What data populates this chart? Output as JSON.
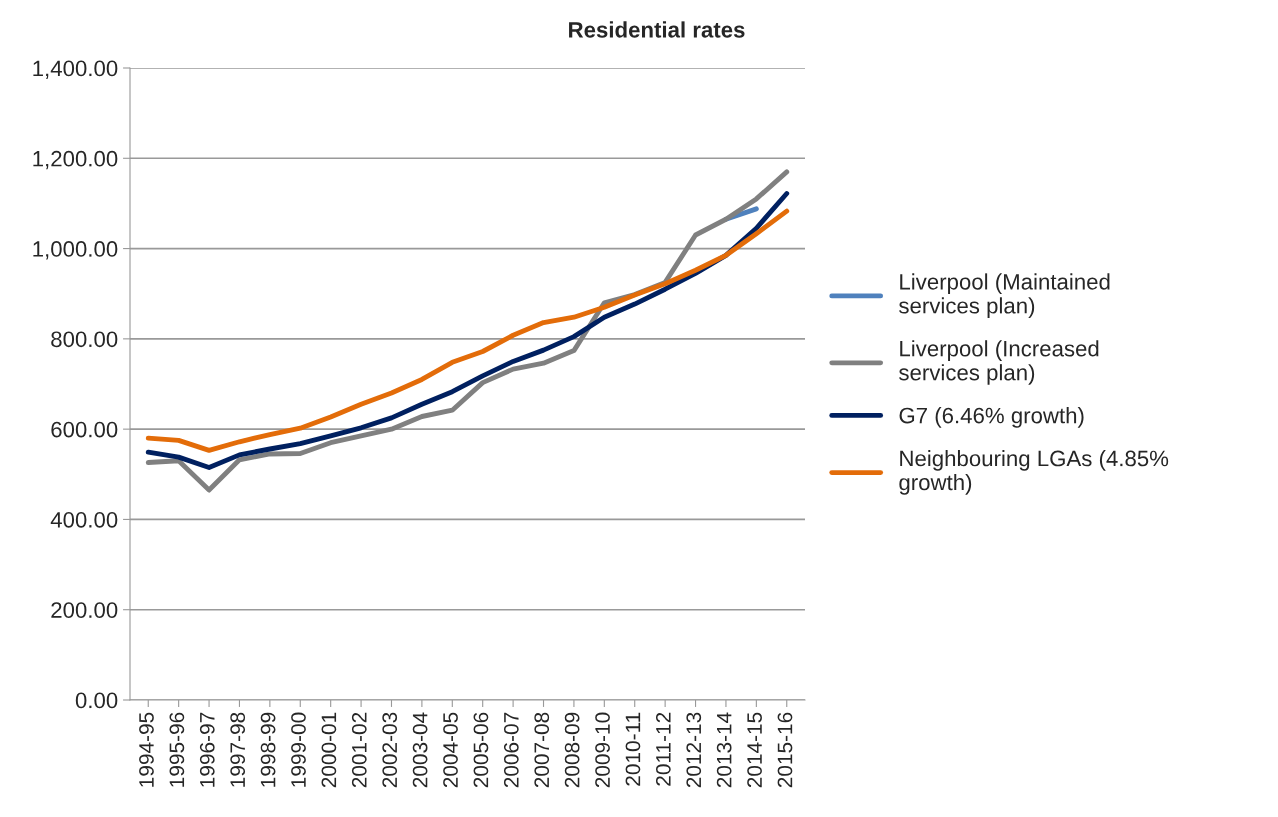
{
  "chart_data": {
    "type": "line",
    "title": "Residential rates",
    "categories": [
      "1994-95",
      "1995-96",
      "1996-97",
      "1997-98",
      "1998-99",
      "1999-00",
      "2000-01",
      "2001-02",
      "2002-03",
      "2003-04",
      "2004-05",
      "2005-06",
      "2006-07",
      "2007-08",
      "2008-09",
      "2009-10",
      "2010-11",
      "2011-12",
      "2012-13",
      "2013-14",
      "2014-15",
      "2015-16"
    ],
    "series": [
      {
        "name": "Liverpool (Maintained services plan)",
        "color": "#4f81bd",
        "values": [
          null,
          null,
          null,
          null,
          null,
          null,
          null,
          null,
          null,
          null,
          null,
          null,
          null,
          null,
          null,
          null,
          null,
          null,
          null,
          1065,
          1088,
          null
        ]
      },
      {
        "name": "Liverpool (Increased services plan)",
        "color": "#808080",
        "values": [
          526,
          530,
          465,
          532,
          545,
          546,
          570,
          585,
          600,
          628,
          642,
          703,
          733,
          746,
          774,
          880,
          898,
          925,
          1030,
          1065,
          1110,
          1170
        ]
      },
      {
        "name": "G7 (6.46% growth)",
        "color": "#002060",
        "values": [
          549,
          538,
          515,
          543,
          556,
          568,
          585,
          603,
          625,
          655,
          683,
          718,
          750,
          775,
          805,
          848,
          877,
          910,
          945,
          985,
          1045,
          1122
        ]
      },
      {
        "name": "Neighbouring LGAs (4.85% growth)",
        "color": "#e36c09",
        "values": [
          580,
          575,
          553,
          572,
          588,
          602,
          627,
          655,
          680,
          710,
          748,
          772,
          808,
          836,
          848,
          870,
          897,
          922,
          952,
          985,
          1033,
          1083
        ]
      }
    ],
    "ylim": [
      0,
      1400
    ],
    "yticks": [
      {
        "value": 0,
        "label": "0.00"
      },
      {
        "value": 200,
        "label": "200.00"
      },
      {
        "value": 400,
        "label": "400.00"
      },
      {
        "value": 600,
        "label": "600.00"
      },
      {
        "value": 800,
        "label": "800.00"
      },
      {
        "value": 1000,
        "label": "1,000.00"
      },
      {
        "value": 1200,
        "label": "1,200.00"
      },
      {
        "value": 1400,
        "label": "1,400.00"
      }
    ],
    "grid": "y",
    "legend": "right",
    "marker": "none",
    "line_style": "solid"
  }
}
